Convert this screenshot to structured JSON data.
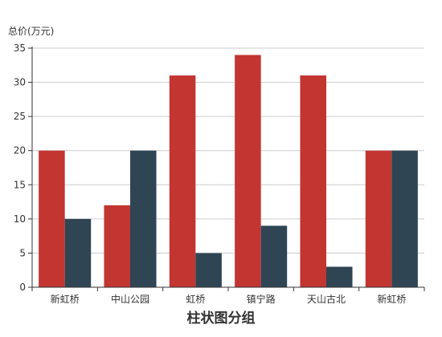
{
  "chart_data": {
    "type": "bar",
    "title": "柱状图分组",
    "ylabel": "总价(万元)",
    "xlabel": "",
    "categories": [
      "新虹桥",
      "中山公园",
      "虹桥",
      "镇宁路",
      "天山古北",
      "新虹桥"
    ],
    "series": [
      {
        "values": [
          20,
          12,
          31,
          34,
          31,
          20
        ],
        "color": "#c23531"
      },
      {
        "values": [
          10,
          20,
          5,
          9,
          3,
          20
        ],
        "color": "#2f4554"
      }
    ],
    "ylim": [
      0,
      35
    ],
    "yticks": [
      0,
      5,
      10,
      15,
      20,
      25,
      30,
      35
    ],
    "grid": true,
    "legend": "none"
  }
}
